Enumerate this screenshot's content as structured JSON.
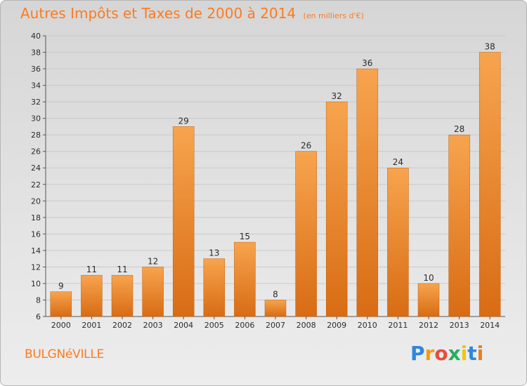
{
  "header": {
    "title": "Autres Impôts et Taxes de 2000 à 2014",
    "unit": "(en milliers d'€)"
  },
  "footer": {
    "commune": "BULGNéVILLE",
    "logo_letters": [
      "P",
      "r",
      "o",
      "x",
      "i",
      "t",
      "i"
    ],
    "logo_colors": [
      "#2e86de",
      "#f39c12",
      "#e74c3c",
      "#27ae60",
      "#f1c40f",
      "#2e86de",
      "#e67e22"
    ]
  },
  "colors": {
    "title": "#ff7a1f",
    "bar_light": "#f7a44e",
    "bar_dark": "#d86c14",
    "grid": "#c9c9c9",
    "axis": "#555555"
  },
  "chart_data": {
    "type": "bar",
    "title": "Autres Impôts et Taxes de 2000 à 2014",
    "categories": [
      "2000",
      "2001",
      "2002",
      "2003",
      "2004",
      "2005",
      "2006",
      "2007",
      "2008",
      "2009",
      "2010",
      "2011",
      "2012",
      "2013",
      "2014"
    ],
    "values": [
      9,
      11,
      11,
      12,
      29,
      13,
      15,
      8,
      26,
      32,
      36,
      24,
      10,
      28,
      38
    ],
    "ylim": [
      6,
      40
    ],
    "yticks": [
      6,
      8,
      10,
      12,
      14,
      16,
      18,
      20,
      22,
      24,
      26,
      28,
      30,
      32,
      34,
      36,
      38,
      40
    ],
    "grid": true,
    "xlabel": "",
    "ylabel": ""
  }
}
